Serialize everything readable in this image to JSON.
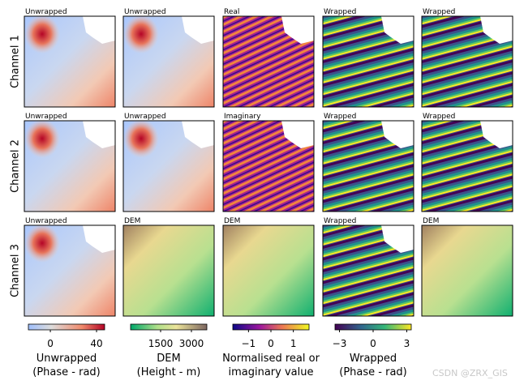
{
  "row_labels": [
    "Channel 1",
    "Channel 2",
    "Channel 3"
  ],
  "panels": [
    [
      "Unwrapped",
      "Unwrapped",
      "Real",
      "Wrapped",
      "Wrapped"
    ],
    [
      "Unwrapped",
      "Unwrapped",
      "Imaginary",
      "Wrapped",
      "Wrapped"
    ],
    [
      "Unwrapped",
      "DEM",
      "DEM",
      "Wrapped",
      "DEM"
    ]
  ],
  "colorbars": [
    {
      "label": "Unwrapped",
      "sublabel": "(Phase - rad)",
      "lim": [
        -19,
        47
      ],
      "ticks": [
        0,
        40
      ]
    },
    {
      "label": "DEM",
      "sublabel": "(Height - m)",
      "lim": [
        40,
        3750
      ],
      "ticks": [
        1500,
        3000
      ]
    },
    {
      "label": "Normalised real or",
      "sublabel": "imaginary value",
      "lim": [
        -1.7,
        1.7
      ],
      "ticks": [
        {
          "value": -1,
          "label": "−1"
        },
        0,
        1
      ]
    },
    {
      "label": "Wrapped",
      "sublabel": "(Phase - rad)",
      "lim": [
        -3.4,
        3.4
      ],
      "ticks": [
        {
          "value": -3,
          "label": "−3"
        },
        0,
        3
      ]
    }
  ],
  "watermark": "CSDN @ZRX_GIS"
}
